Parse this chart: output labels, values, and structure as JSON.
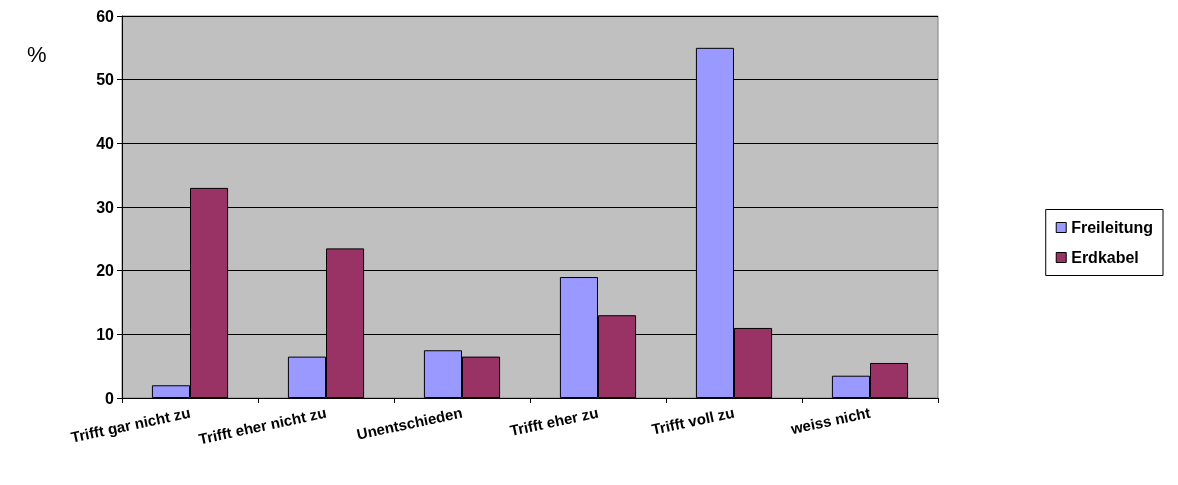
{
  "chart_data": {
    "type": "bar",
    "ylabel": "%",
    "categories": [
      "Trifft gar nicht zu",
      "Trifft eher nicht zu",
      "Unentschieden",
      "Trifft eher zu",
      "Trifft voll zu",
      "weiss nicht"
    ],
    "series": [
      {
        "name": "Freileitung",
        "color": "#9999ff",
        "values": [
          2,
          6.5,
          7.5,
          19,
          55,
          3.5
        ]
      },
      {
        "name": "Erdkabel",
        "color": "#993366",
        "values": [
          33,
          23.5,
          6.5,
          13,
          11,
          5.5
        ]
      }
    ],
    "ylim": [
      0,
      60
    ],
    "yticks": [
      0,
      10,
      20,
      30,
      40,
      50,
      60
    ],
    "grid": "y",
    "legend": "right"
  }
}
